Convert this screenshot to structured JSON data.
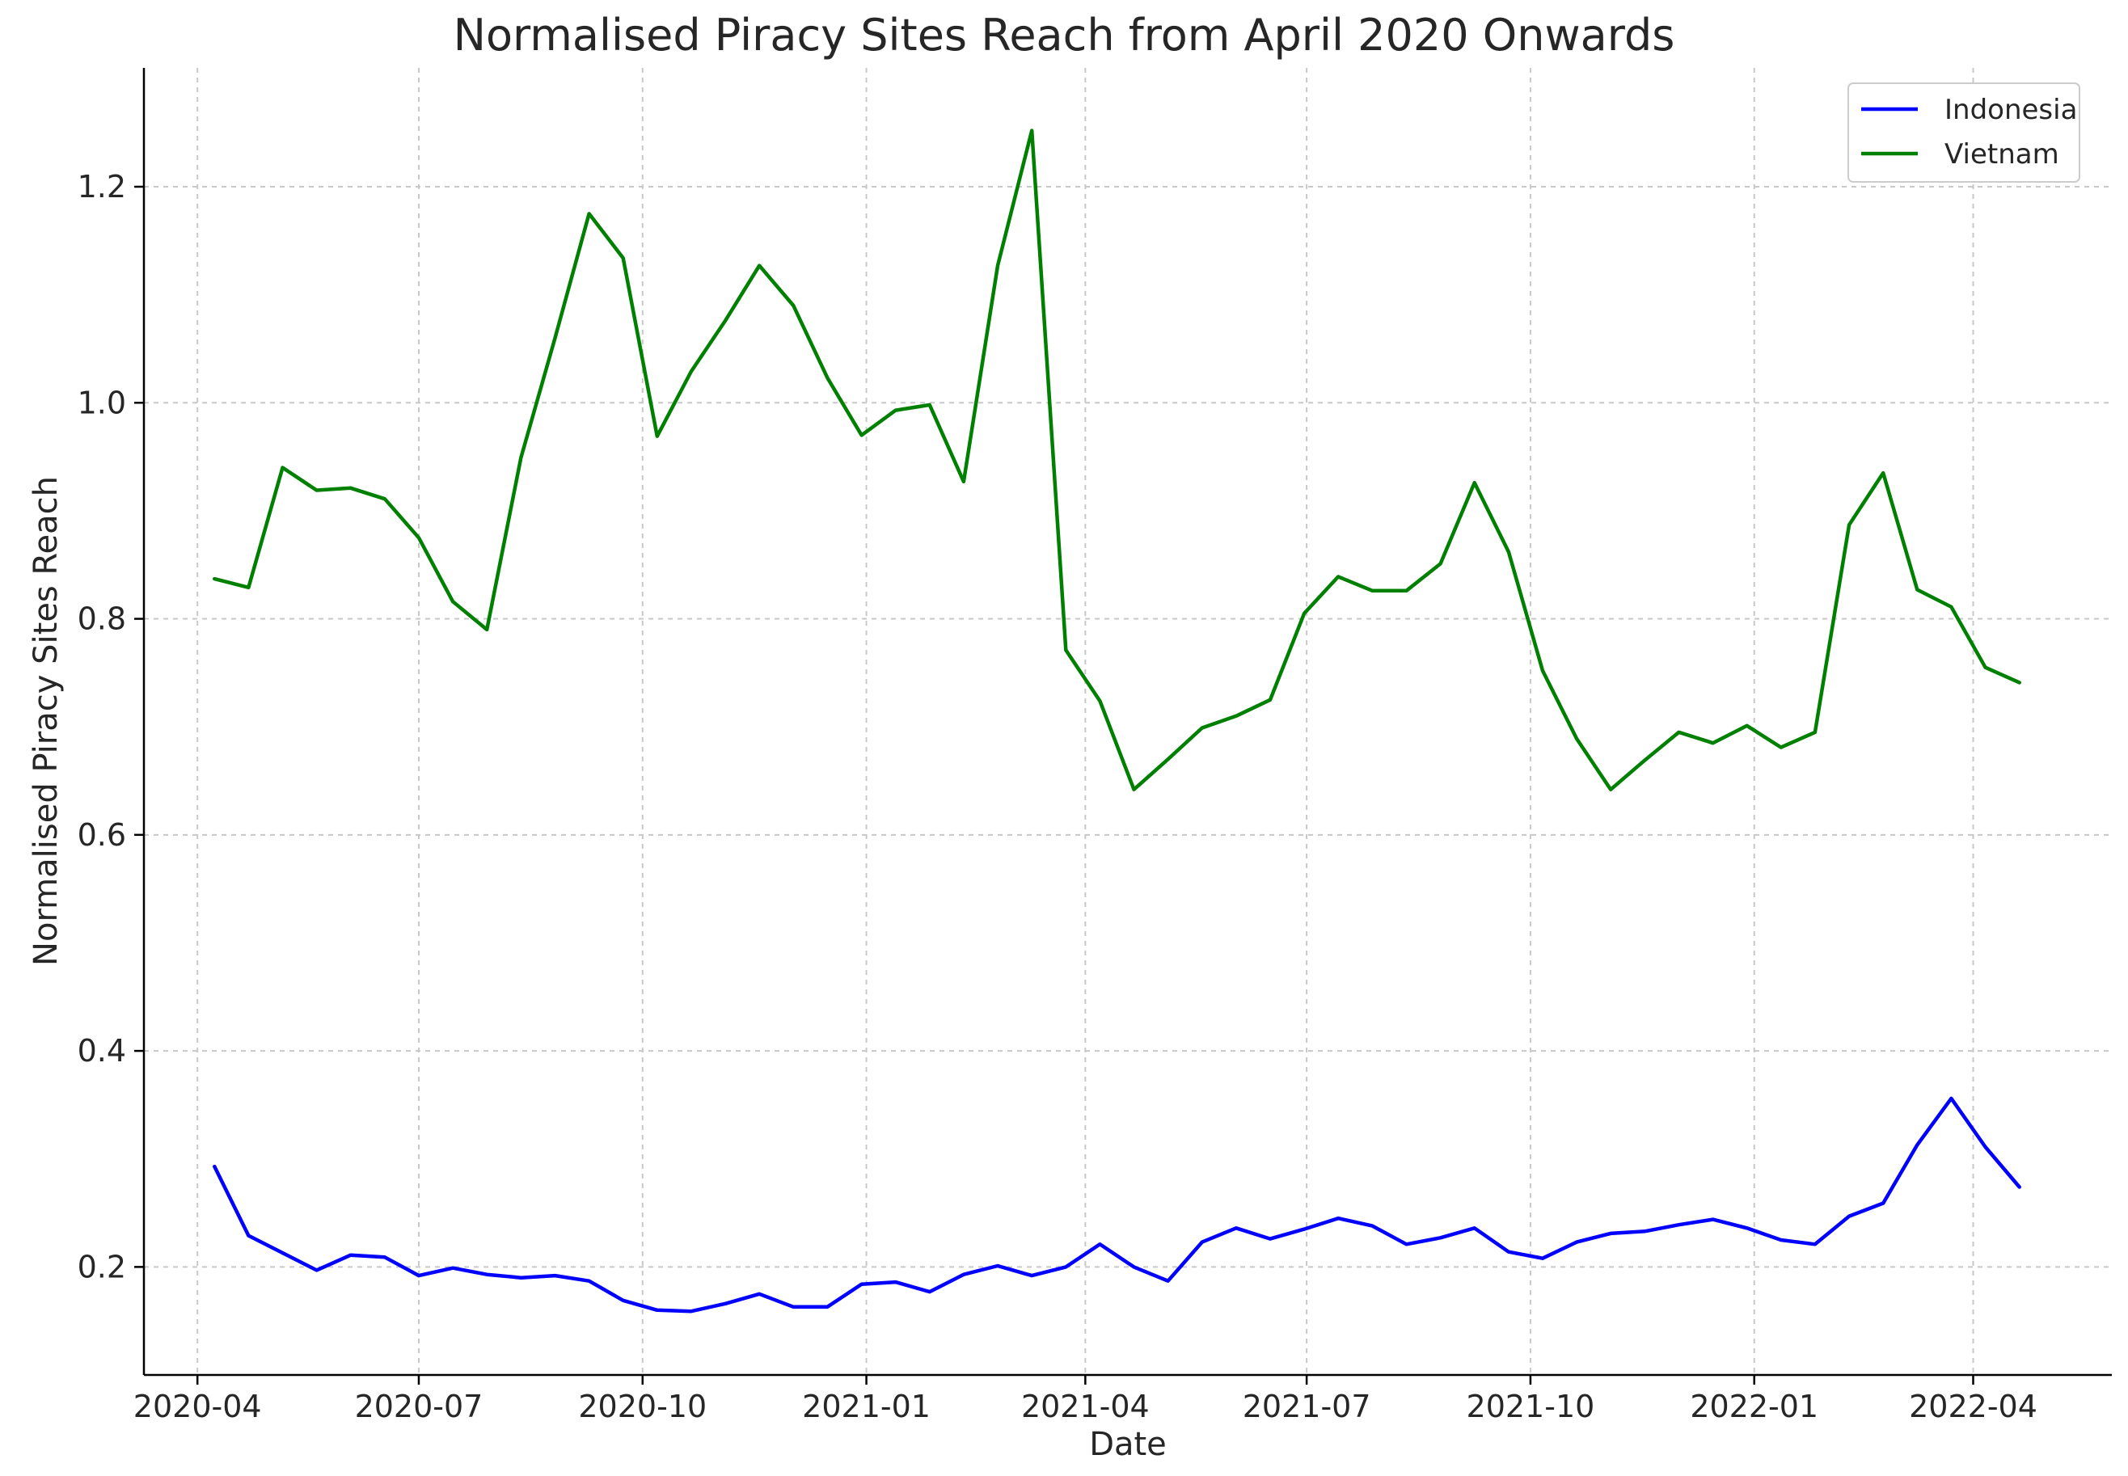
{
  "chart_data": {
    "type": "line",
    "title": "Normalised Piracy Sites Reach from April 2020 Onwards",
    "xlabel": "Date",
    "ylabel": "Normalised Piracy Sites Reach",
    "x_type": "date",
    "x_tick_labels": [
      "2020-04",
      "2020-07",
      "2020-10",
      "2021-01",
      "2021-04",
      "2021-07",
      "2021-10",
      "2022-01",
      "2022-04"
    ],
    "x_range": [
      "2020-03-10",
      "2022-05-28"
    ],
    "y_range": [
      0.1,
      1.31
    ],
    "y_ticks": [
      0.2,
      0.4,
      0.6,
      0.8,
      1.0,
      1.2
    ],
    "y_tick_labels": [
      "0.2",
      "0.4",
      "0.6",
      "0.8",
      "1.0",
      "1.2"
    ],
    "grid": true,
    "legend_position": "top-right",
    "x": [
      "2020-04-08",
      "2020-04-22",
      "2020-05-06",
      "2020-05-20",
      "2020-06-03",
      "2020-06-17",
      "2020-07-01",
      "2020-07-15",
      "2020-07-29",
      "2020-08-12",
      "2020-08-26",
      "2020-09-09",
      "2020-09-23",
      "2020-10-07",
      "2020-10-21",
      "2020-11-04",
      "2020-11-18",
      "2020-12-02",
      "2020-12-16",
      "2020-12-30",
      "2021-01-13",
      "2021-01-27",
      "2021-02-10",
      "2021-02-24",
      "2021-03-10",
      "2021-03-24",
      "2021-04-07",
      "2021-04-21",
      "2021-05-05",
      "2021-05-19",
      "2021-06-02",
      "2021-06-16",
      "2021-06-30",
      "2021-07-14",
      "2021-07-28",
      "2021-08-11",
      "2021-08-25",
      "2021-09-08",
      "2021-09-22",
      "2021-10-06",
      "2021-10-20",
      "2021-11-03",
      "2021-11-17",
      "2021-12-01",
      "2021-12-15",
      "2021-12-29",
      "2022-01-12",
      "2022-01-26",
      "2022-02-09",
      "2022-02-23",
      "2022-03-09",
      "2022-03-23",
      "2022-04-06",
      "2022-04-20"
    ],
    "series": [
      {
        "name": "Indonesia",
        "color": "#0000ff",
        "values": [
          0.293,
          0.229,
          0.213,
          0.197,
          0.211,
          0.209,
          0.192,
          0.199,
          0.193,
          0.19,
          0.192,
          0.187,
          0.169,
          0.16,
          0.159,
          0.166,
          0.175,
          0.163,
          0.163,
          0.184,
          0.186,
          0.177,
          0.193,
          0.201,
          0.192,
          0.2,
          0.221,
          0.2,
          0.187,
          0.223,
          0.236,
          0.226,
          0.235,
          0.245,
          0.238,
          0.221,
          0.227,
          0.236,
          0.214,
          0.208,
          0.223,
          0.231,
          0.233,
          0.239,
          0.244,
          0.236,
          0.225,
          0.221,
          0.247,
          0.259,
          0.313,
          0.356,
          0.311,
          0.274
        ]
      },
      {
        "name": "Vietnam",
        "color": "#008000",
        "values": [
          0.837,
          0.829,
          0.94,
          0.919,
          0.921,
          0.911,
          0.875,
          0.816,
          0.79,
          0.949,
          1.06,
          1.175,
          1.134,
          0.969,
          1.029,
          1.076,
          1.127,
          1.09,
          1.023,
          0.97,
          0.993,
          0.998,
          0.927,
          1.127,
          1.252,
          0.771,
          0.724,
          0.642,
          0.67,
          0.699,
          0.71,
          0.725,
          0.805,
          0.839,
          0.826,
          0.826,
          0.851,
          0.926,
          0.862,
          0.752,
          0.689,
          0.642,
          0.669,
          0.695,
          0.685,
          0.701,
          0.681,
          0.695,
          0.887,
          0.935,
          0.827,
          0.811,
          0.755,
          0.741
        ]
      }
    ]
  }
}
